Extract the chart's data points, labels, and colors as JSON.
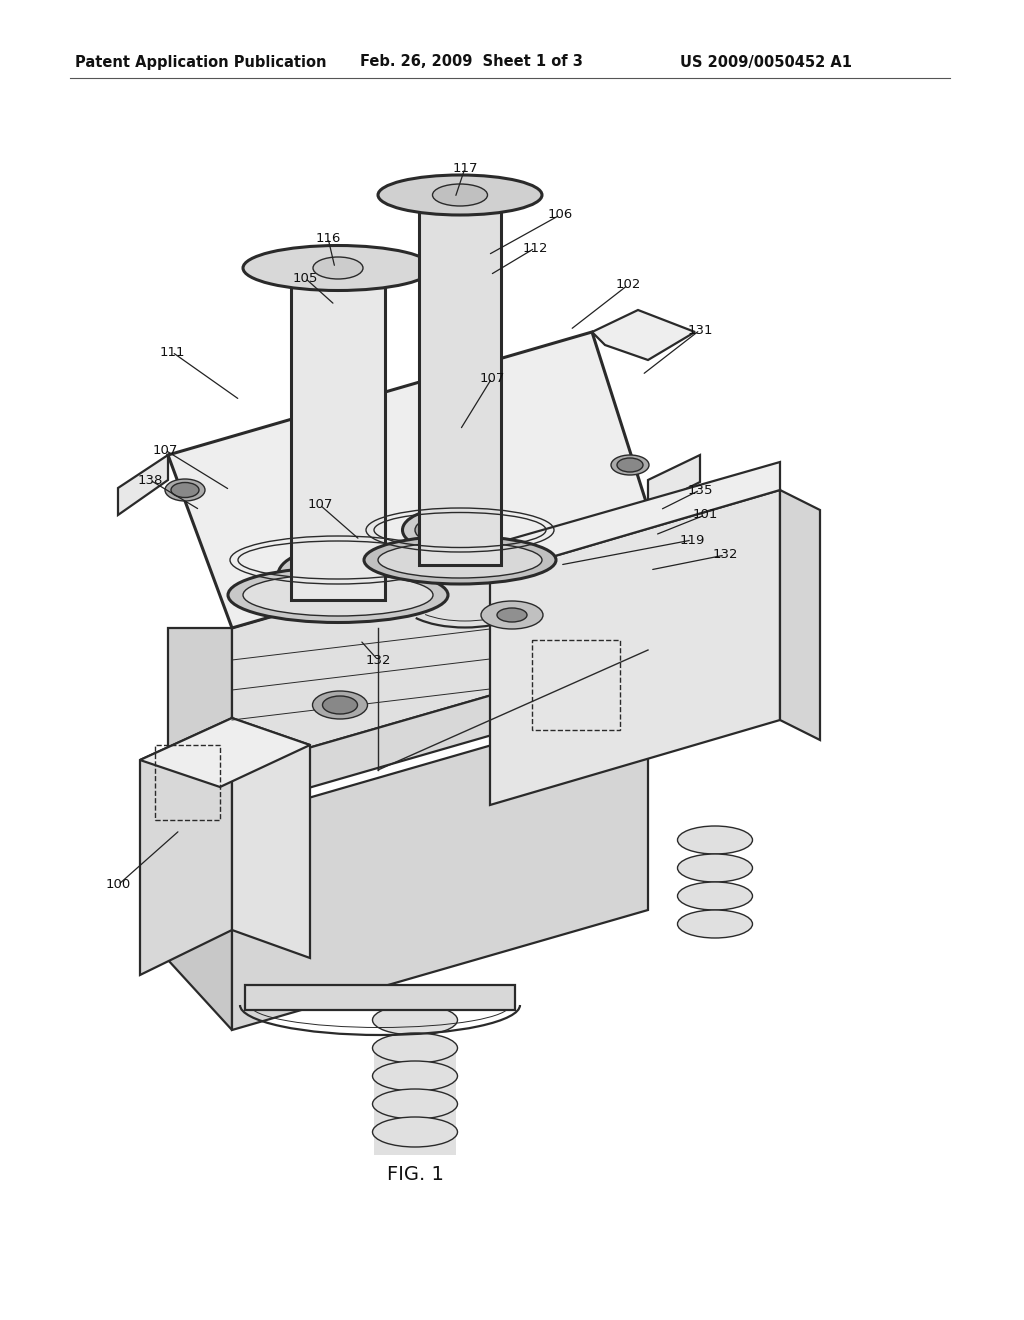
{
  "bg_color": "#ffffff",
  "header_left": "Patent Application Publication",
  "header_mid": "Feb. 26, 2009  Sheet 1 of 3",
  "header_right": "US 2009/0050452 A1",
  "fig_label": "FIG. 1",
  "line_color": "#2a2a2a",
  "lw_main": 1.6,
  "lw_thick": 2.2,
  "lw_thin": 1.0,
  "lw_xtra": 0.7
}
